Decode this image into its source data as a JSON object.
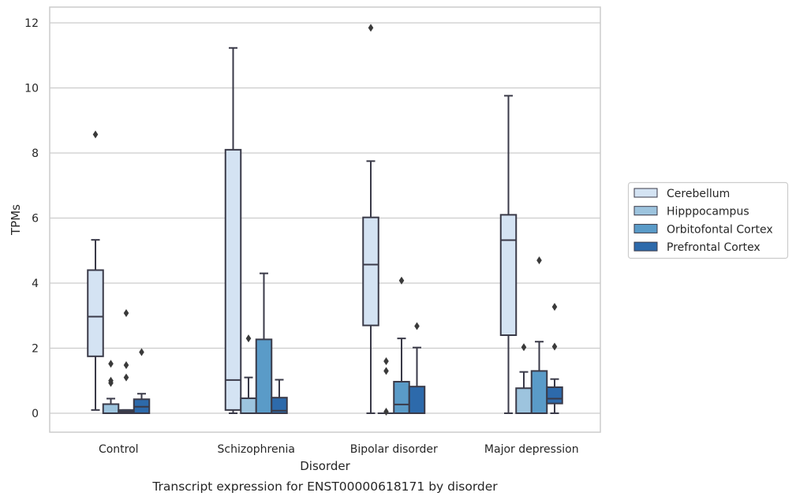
{
  "chart_data": {
    "type": "box",
    "caption": "Transcript expression for ENST00000618171 by disorder",
    "xlabel": "Disorder",
    "ylabel": "TPMs",
    "ylim": [
      -0.58,
      12.45
    ],
    "yticks": [
      0,
      2,
      4,
      6,
      8,
      10,
      12
    ],
    "grid": "horizontal",
    "legend_position": "right",
    "categories": [
      "Control",
      "Schizophrenia",
      "Bipolar disorder",
      "Major depression"
    ],
    "series": [
      {
        "name": "Cerebellum",
        "color": "#d4e3f3",
        "boxes": [
          {
            "whislo": 0.1,
            "q1": 1.75,
            "med": 2.97,
            "q3": 4.4,
            "whishi": 5.33,
            "fliers": [
              8.57
            ]
          },
          {
            "whislo": 0.0,
            "q1": 0.1,
            "med": 1.02,
            "q3": 8.1,
            "whishi": 11.23,
            "fliers": []
          },
          {
            "whislo": 0.0,
            "q1": 2.7,
            "med": 4.57,
            "q3": 6.02,
            "whishi": 7.75,
            "fliers": [
              11.85
            ]
          },
          {
            "whislo": 0.0,
            "q1": 2.4,
            "med": 5.32,
            "q3": 6.1,
            "whishi": 9.76,
            "fliers": []
          }
        ]
      },
      {
        "name": "Hipppocampus",
        "color": "#9dc4de",
        "boxes": [
          {
            "whislo": 0.0,
            "q1": 0.0,
            "med": 0.0,
            "q3": 0.28,
            "whishi": 0.45,
            "fliers": [
              0.93,
              1.0,
              1.52
            ]
          },
          {
            "whislo": 0.0,
            "q1": 0.0,
            "med": 0.0,
            "q3": 0.46,
            "whishi": 1.1,
            "fliers": [
              2.3
            ]
          },
          {
            "whislo": 0.0,
            "q1": 0.0,
            "med": 0.0,
            "q3": 0.0,
            "whishi": 0.0,
            "fliers": [
              0.05,
              1.3,
              1.6
            ]
          },
          {
            "whislo": 0.0,
            "q1": 0.0,
            "med": 0.0,
            "q3": 0.77,
            "whishi": 1.27,
            "fliers": [
              2.03
            ]
          }
        ]
      },
      {
        "name": "Orbitofontal Cortex",
        "color": "#5a9bc8",
        "boxes": [
          {
            "whislo": 0.0,
            "q1": 0.0,
            "med": 0.05,
            "q3": 0.1,
            "whishi": 0.1,
            "fliers": [
              1.1,
              1.48,
              3.08
            ]
          },
          {
            "whislo": 0.0,
            "q1": 0.0,
            "med": 0.0,
            "q3": 2.27,
            "whishi": 4.3,
            "fliers": []
          },
          {
            "whislo": 0.0,
            "q1": 0.0,
            "med": 0.27,
            "q3": 0.97,
            "whishi": 2.3,
            "fliers": [
              4.08
            ]
          },
          {
            "whislo": 0.0,
            "q1": 0.0,
            "med": 0.0,
            "q3": 1.3,
            "whishi": 2.2,
            "fliers": [
              4.7
            ]
          }
        ]
      },
      {
        "name": "Prefrontal Cortex",
        "color": "#2d6aab",
        "boxes": [
          {
            "whislo": 0.0,
            "q1": 0.0,
            "med": 0.2,
            "q3": 0.43,
            "whishi": 0.6,
            "fliers": [
              1.88
            ]
          },
          {
            "whislo": 0.0,
            "q1": 0.0,
            "med": 0.08,
            "q3": 0.48,
            "whishi": 1.03,
            "fliers": []
          },
          {
            "whislo": 0.0,
            "q1": 0.0,
            "med": 0.0,
            "q3": 0.82,
            "whishi": 2.02,
            "fliers": [
              2.68
            ]
          },
          {
            "whislo": 0.0,
            "q1": 0.3,
            "med": 0.45,
            "q3": 0.8,
            "whishi": 1.05,
            "fliers": [
              2.05,
              3.27
            ]
          }
        ]
      }
    ]
  }
}
